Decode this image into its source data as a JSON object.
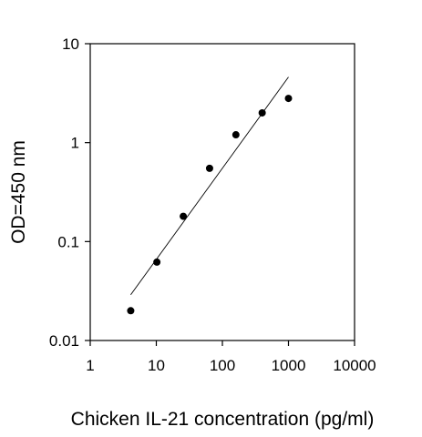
{
  "chart_data": {
    "type": "scatter",
    "title": "",
    "xlabel": "Chicken IL-21 concentration (pg/ml)",
    "ylabel": "OD=450 nm",
    "xscale": "log",
    "yscale": "log",
    "xlim": [
      1,
      10000
    ],
    "ylim": [
      0.01,
      10
    ],
    "xticks": [
      "1",
      "10",
      "100",
      "1000",
      "10000"
    ],
    "yticks": [
      "0.01",
      "0.1",
      "1",
      "10"
    ],
    "grid": false,
    "legend": "none",
    "series": [
      {
        "x": [
          4.1,
          10.2,
          25.6,
          64,
          160,
          400,
          1000
        ],
        "y": [
          0.02,
          0.062,
          0.18,
          0.55,
          1.2,
          2.0,
          2.8
        ]
      }
    ],
    "fit_line": {
      "x": [
        4.1,
        1000
      ],
      "y": [
        0.029,
        4.6
      ]
    }
  }
}
